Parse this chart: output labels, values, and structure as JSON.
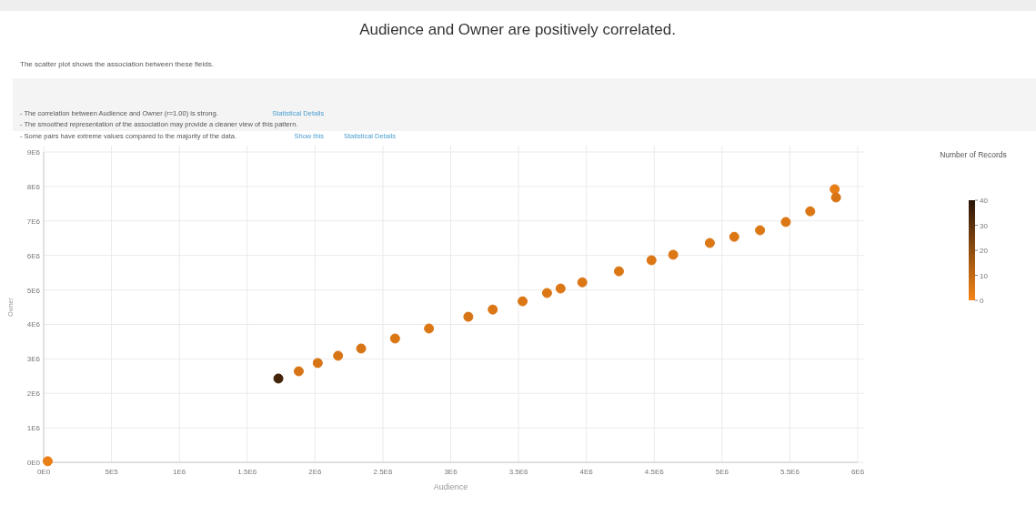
{
  "chart_data": {
    "type": "scatter",
    "title": "Audience and Owner are positively correlated.",
    "subtitle": "The scatter plot shows the association between these fields.",
    "annotations": [
      "- The correlation between Audience and Owner (r=1.00) is strong.",
      "Statistical Details",
      "- The smoothed representation of the association may provide a cleaner view of this pattern.",
      "- Some pairs have extreme values compared to the majority of the data.",
      "Show this",
      "Statistical Details"
    ],
    "xlabel": "Audience",
    "ylabel": "Owner",
    "clabel": "Number of Records",
    "x": [
      30000,
      1730000,
      1880000,
      2020000,
      2170000,
      2340000,
      2590000,
      2840000,
      3130000,
      3310000,
      3530000,
      3710000,
      3810000,
      3970000,
      4240000,
      4480000,
      4640000,
      4910000,
      5090000,
      5280000,
      5470000,
      5650000,
      5830000,
      5840000
    ],
    "values": [
      30000,
      2430000,
      2640000,
      2880000,
      3090000,
      3300000,
      3590000,
      3880000,
      4220000,
      4430000,
      4670000,
      4910000,
      5040000,
      5220000,
      5540000,
      5860000,
      6020000,
      6360000,
      6540000,
      6730000,
      6970000,
      7280000,
      7920000,
      7680000
    ],
    "cvalues": [
      2,
      35,
      6,
      6,
      6,
      6,
      5,
      5,
      6,
      5,
      5,
      5,
      5,
      5,
      5,
      5,
      5,
      5,
      5,
      5,
      5,
      5,
      3,
      6
    ],
    "clim": [
      0,
      40
    ],
    "cticks": [
      0,
      10,
      20,
      30,
      40
    ],
    "xlim": [
      0,
      6000000
    ],
    "xticks": [
      {
        "value": 0,
        "label": "0E0"
      },
      {
        "value": 500000,
        "label": "5E5"
      },
      {
        "value": 1000000,
        "label": "1E6"
      },
      {
        "value": 1500000,
        "label": "1.5E6"
      },
      {
        "value": 2000000,
        "label": "2E6"
      },
      {
        "value": 2500000,
        "label": "2.5E6"
      },
      {
        "value": 3000000,
        "label": "3E6"
      },
      {
        "value": 3500000,
        "label": "3.5E6"
      },
      {
        "value": 4000000,
        "label": "4E6"
      },
      {
        "value": 4500000,
        "label": "4.5E6"
      },
      {
        "value": 5000000,
        "label": "5E6"
      },
      {
        "value": 5500000,
        "label": "5.5E6"
      },
      {
        "value": 6000000,
        "label": "6E6"
      }
    ],
    "ylim": [
      0,
      9000000
    ],
    "yticks": [
      {
        "value": 0,
        "label": "0E0"
      },
      {
        "value": 1000000,
        "label": "1E6"
      },
      {
        "value": 2000000,
        "label": "2E6"
      },
      {
        "value": 3000000,
        "label": "3E6"
      },
      {
        "value": 4000000,
        "label": "4E6"
      },
      {
        "value": 5000000,
        "label": "5E6"
      },
      {
        "value": 6000000,
        "label": "6E6"
      },
      {
        "value": 7000000,
        "label": "7E6"
      },
      {
        "value": 8000000,
        "label": "8E6"
      },
      {
        "value": 9000000,
        "label": "9E6"
      }
    ],
    "grid": true,
    "marker": "circle"
  }
}
